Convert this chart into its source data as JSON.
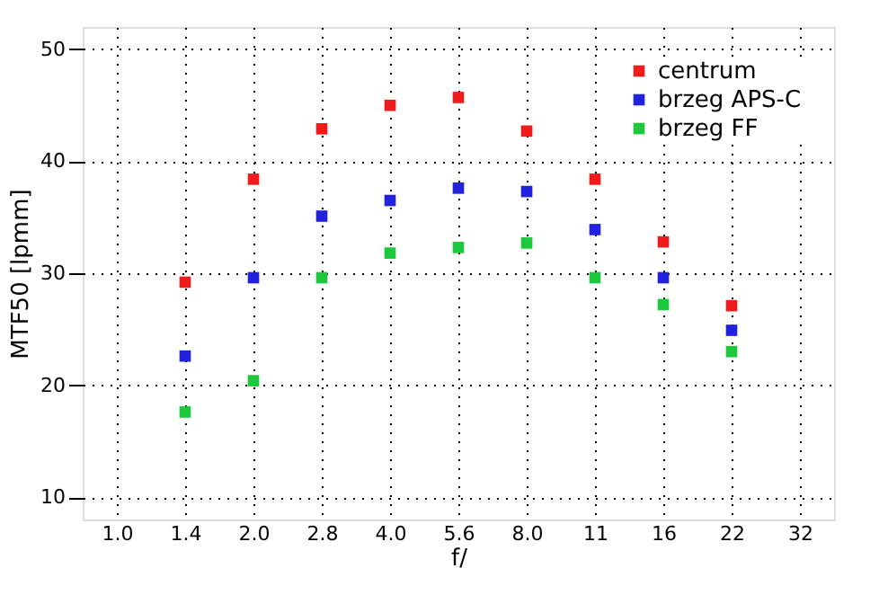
{
  "chart_data": {
    "type": "scatter",
    "xlabel": "f/",
    "ylabel": "MTF50 [lpmm]",
    "categories": [
      "1.0",
      "1.4",
      "2.0",
      "2.8",
      "4.0",
      "5.6",
      "8.0",
      "11",
      "16",
      "22",
      "32"
    ],
    "series": [
      {
        "name": "centrum",
        "color": "#ee1c1c",
        "values": [
          null,
          29.2,
          38.4,
          42.9,
          45.0,
          45.7,
          42.7,
          38.4,
          32.8,
          27.1,
          null
        ]
      },
      {
        "name": "brzeg APS-C",
        "color": "#2222dd",
        "values": [
          null,
          22.6,
          29.6,
          35.1,
          36.5,
          37.6,
          37.3,
          33.9,
          29.6,
          24.9,
          null
        ]
      },
      {
        "name": "brzeg FF",
        "color": "#1ec83c",
        "values": [
          null,
          17.6,
          20.4,
          29.6,
          31.8,
          32.3,
          32.7,
          29.6,
          27.2,
          23.0,
          null
        ]
      }
    ],
    "ylim": [
      8,
      52
    ],
    "yticks": [
      10,
      20,
      30,
      40,
      50
    ],
    "grid": true,
    "legend": "top right",
    "marker": "square"
  }
}
